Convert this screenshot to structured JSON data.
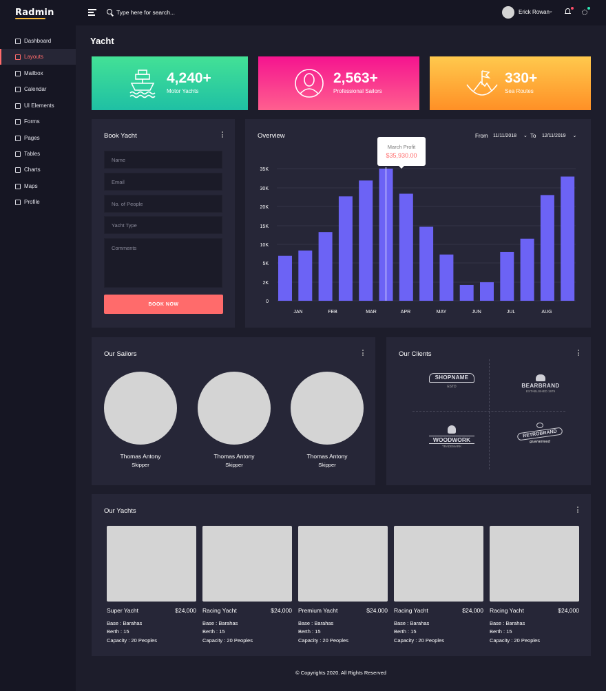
{
  "brand": {
    "name": "Radmin"
  },
  "header": {
    "search_placeholder": "Type here for search...",
    "user_name": "Erick Rowan"
  },
  "sidebar": {
    "items": [
      {
        "label": "Dashboard",
        "icon": "grid-icon"
      },
      {
        "label": "Layouts",
        "icon": "layers-icon",
        "active": true
      },
      {
        "label": "Mailbox",
        "icon": "mail-icon"
      },
      {
        "label": "Calendar",
        "icon": "calendar-icon"
      },
      {
        "label": "UI Elements",
        "icon": "wrench-icon"
      },
      {
        "label": "Forms",
        "icon": "file-icon"
      },
      {
        "label": "Pages",
        "icon": "tag-icon"
      },
      {
        "label": "Tables",
        "icon": "table-icon"
      },
      {
        "label": "Charts",
        "icon": "bar-chart-icon"
      },
      {
        "label": "Maps",
        "icon": "map-icon"
      },
      {
        "label": "Profile",
        "icon": "user-icon"
      }
    ]
  },
  "page": {
    "title": "Yacht"
  },
  "stats": [
    {
      "value": "4,240+",
      "label": "Motor Yachts",
      "icon": "ship-icon",
      "colors": [
        "#43e196",
        "#1fc0a4"
      ]
    },
    {
      "value": "2,563+",
      "label": "Professional Sailors",
      "icon": "sailor-icon",
      "colors": [
        "#f5148f",
        "#ff5f8f"
      ]
    },
    {
      "value": "330+",
      "label": "Sea Routes",
      "icon": "flag-mountain-icon",
      "colors": [
        "#ffc94d",
        "#ff9026"
      ]
    }
  ],
  "booking": {
    "title": "Book Yacht",
    "fields": [
      "Name",
      "Email",
      "No. of People",
      "Yacht Type"
    ],
    "comments_placeholder": "Comments",
    "button": "BOOK NOW"
  },
  "overview": {
    "title": "Overview",
    "from_label": "From",
    "from_date": "11/11/2018",
    "to_label": "To",
    "to_date": "12/11/2019",
    "tooltip_title": "March Profit",
    "tooltip_value": "$35,930.00"
  },
  "chart_data": {
    "type": "bar",
    "color": "#6c63f5",
    "y_ticks": [
      "0",
      "2K",
      "5K",
      "10K",
      "15K",
      "20K",
      "30K",
      "35K"
    ],
    "x_labels": [
      "JAN",
      "FEB",
      "MAR",
      "APR",
      "MAY",
      "JUN",
      "JUL",
      "AUG"
    ],
    "values": [
      0.34,
      0.38,
      0.52,
      0.79,
      0.91,
      1.0,
      0.81,
      0.56,
      0.35,
      0.12,
      0.14,
      0.37,
      0.47,
      0.8,
      0.94
    ],
    "highlight_index": 5
  },
  "sailors": {
    "title": "Our Sailors",
    "items": [
      {
        "name": "Thomas Antony",
        "role": "Skipper"
      },
      {
        "name": "Thomas Antony",
        "role": "Skipper"
      },
      {
        "name": "Thomas Antony",
        "role": "Skipper"
      }
    ]
  },
  "clients": {
    "title": "Our Clients",
    "logos": [
      "SHOPNAME",
      "BEARBRAND",
      "WOODWORK",
      "RETROBRAND"
    ],
    "logo_sub": [
      "ESTD",
      "ESTABLISHED 1979",
      "TRADEMARK",
      "guaranteed"
    ]
  },
  "yachts": {
    "title": "Our Yachts",
    "items": [
      {
        "name": "Super Yacht",
        "price": "$24,000",
        "base": "Base : Barahas",
        "berth": "Berth : 15",
        "capacity": "Capacity : 20 Peoples"
      },
      {
        "name": "Racing Yacht",
        "price": "$24,000",
        "base": "Base : Barahas",
        "berth": "Berth : 15",
        "capacity": "Capacity : 20 Peoples"
      },
      {
        "name": "Premium Yacht",
        "price": "$24,000",
        "base": "Base : Barahas",
        "berth": "Berth : 15",
        "capacity": "Capacity : 20 Peoples"
      },
      {
        "name": "Racing Yacht",
        "price": "$24,000",
        "base": "Base : Barahas",
        "berth": "Berth : 15",
        "capacity": "Capacity : 20 Peoples"
      },
      {
        "name": "Racing Yacht",
        "price": "$24,000",
        "base": "Base : Barahas",
        "berth": "Berth : 15",
        "capacity": "Capacity : 20 Peoples"
      }
    ]
  },
  "footer": {
    "text": "© Copyrights 2020. All Rights Reserved"
  }
}
